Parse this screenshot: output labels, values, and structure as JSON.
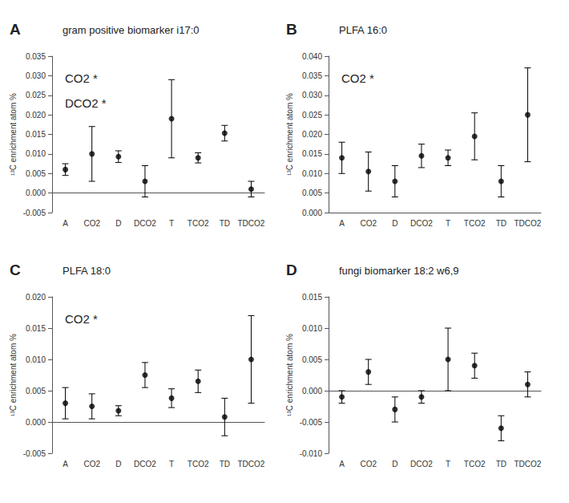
{
  "chart_data": [
    {
      "type": "scatter",
      "panel_label": "A",
      "title": "gram positive biomarker i17:0",
      "annotations": [
        "CO2 *",
        "DCO2 *"
      ],
      "ylabel": "¹³C enrichment atom %",
      "categories": [
        "A",
        "CO2",
        "D",
        "DCO2",
        "T",
        "TCO2",
        "TD",
        "TDCO2"
      ],
      "values": [
        0.006,
        0.01,
        0.0093,
        0.003,
        0.019,
        0.009,
        0.0153,
        0.001
      ],
      "errors": [
        0.0015,
        0.007,
        0.0015,
        0.004,
        0.01,
        0.0013,
        0.002,
        0.002
      ],
      "ylim": [
        -0.005,
        0.035
      ],
      "yticks": [
        {
          "value": -0.005,
          "label": "-0.005"
        },
        {
          "value": 0.0,
          "label": "0.000"
        },
        {
          "value": 0.005,
          "label": "0.005"
        },
        {
          "value": 0.01,
          "label": "0.010"
        },
        {
          "value": 0.015,
          "label": "0.015"
        },
        {
          "value": 0.02,
          "label": "0.020"
        },
        {
          "value": 0.025,
          "label": "0.025"
        },
        {
          "value": 0.03,
          "label": "0.030"
        },
        {
          "value": 0.035,
          "label": "0.035"
        }
      ],
      "color": "black",
      "marker": "circle",
      "grid": false
    },
    {
      "type": "scatter",
      "panel_label": "B",
      "title": "PLFA 16:0",
      "annotations": [
        "CO2 *"
      ],
      "ylabel": "¹³C enrichment atom %",
      "categories": [
        "A",
        "CO2",
        "D",
        "DCO2",
        "T",
        "TCO2",
        "TD",
        "TDCO2"
      ],
      "values": [
        0.014,
        0.0105,
        0.008,
        0.0145,
        0.014,
        0.0195,
        0.008,
        0.025
      ],
      "errors": [
        0.004,
        0.005,
        0.004,
        0.003,
        0.002,
        0.006,
        0.004,
        0.012
      ],
      "ylim": [
        0.0,
        0.04
      ],
      "yticks": [
        {
          "value": 0.0,
          "label": "0.000"
        },
        {
          "value": 0.005,
          "label": "0.005"
        },
        {
          "value": 0.01,
          "label": "0.010"
        },
        {
          "value": 0.015,
          "label": "0.015"
        },
        {
          "value": 0.02,
          "label": "0.020"
        },
        {
          "value": 0.025,
          "label": "0.025"
        },
        {
          "value": 0.03,
          "label": "0.030"
        },
        {
          "value": 0.035,
          "label": "0.035"
        },
        {
          "value": 0.04,
          "label": "0.040"
        }
      ],
      "color": "black",
      "marker": "circle",
      "grid": false
    },
    {
      "type": "scatter",
      "panel_label": "C",
      "title": "PLFA 18:0",
      "annotations": [
        "CO2 *"
      ],
      "ylabel": "¹³C enrichment atom %",
      "categories": [
        "A",
        "CO2",
        "D",
        "DCO2",
        "T",
        "TCO2",
        "TD",
        "TDCO2"
      ],
      "values": [
        0.003,
        0.0025,
        0.0018,
        0.0075,
        0.0038,
        0.0065,
        0.0008,
        0.01
      ],
      "errors": [
        0.0025,
        0.002,
        0.0008,
        0.002,
        0.0015,
        0.0018,
        0.003,
        0.007
      ],
      "ylim": [
        -0.005,
        0.02
      ],
      "yticks": [
        {
          "value": -0.005,
          "label": "-0.005"
        },
        {
          "value": 0.0,
          "label": "0.000"
        },
        {
          "value": 0.005,
          "label": "0.005"
        },
        {
          "value": 0.01,
          "label": "0.010"
        },
        {
          "value": 0.015,
          "label": "0.015"
        },
        {
          "value": 0.02,
          "label": "0.020"
        }
      ],
      "color": "black",
      "marker": "circle",
      "grid": false
    },
    {
      "type": "scatter",
      "panel_label": "D",
      "title": "fungi biomarker 18:2 w6,9",
      "annotations": [],
      "ylabel": "¹³C enrichment atom %",
      "categories": [
        "A",
        "CO2",
        "D",
        "DCO2",
        "T",
        "TCO2",
        "TD",
        "TDCO2"
      ],
      "values": [
        -0.001,
        0.003,
        -0.003,
        -0.001,
        0.005,
        0.004,
        -0.006,
        0.001
      ],
      "errors": [
        0.001,
        0.002,
        0.002,
        0.001,
        0.005,
        0.002,
        0.002,
        0.002
      ],
      "ylim": [
        -0.01,
        0.015
      ],
      "yticks": [
        {
          "value": -0.01,
          "label": "-0.010"
        },
        {
          "value": -0.005,
          "label": "-0.005"
        },
        {
          "value": 0.0,
          "label": "0.000"
        },
        {
          "value": 0.005,
          "label": "0.005"
        },
        {
          "value": 0.01,
          "label": "0.010"
        },
        {
          "value": 0.015,
          "label": "0.015"
        }
      ],
      "color": "black",
      "marker": "circle",
      "grid": false
    }
  ]
}
